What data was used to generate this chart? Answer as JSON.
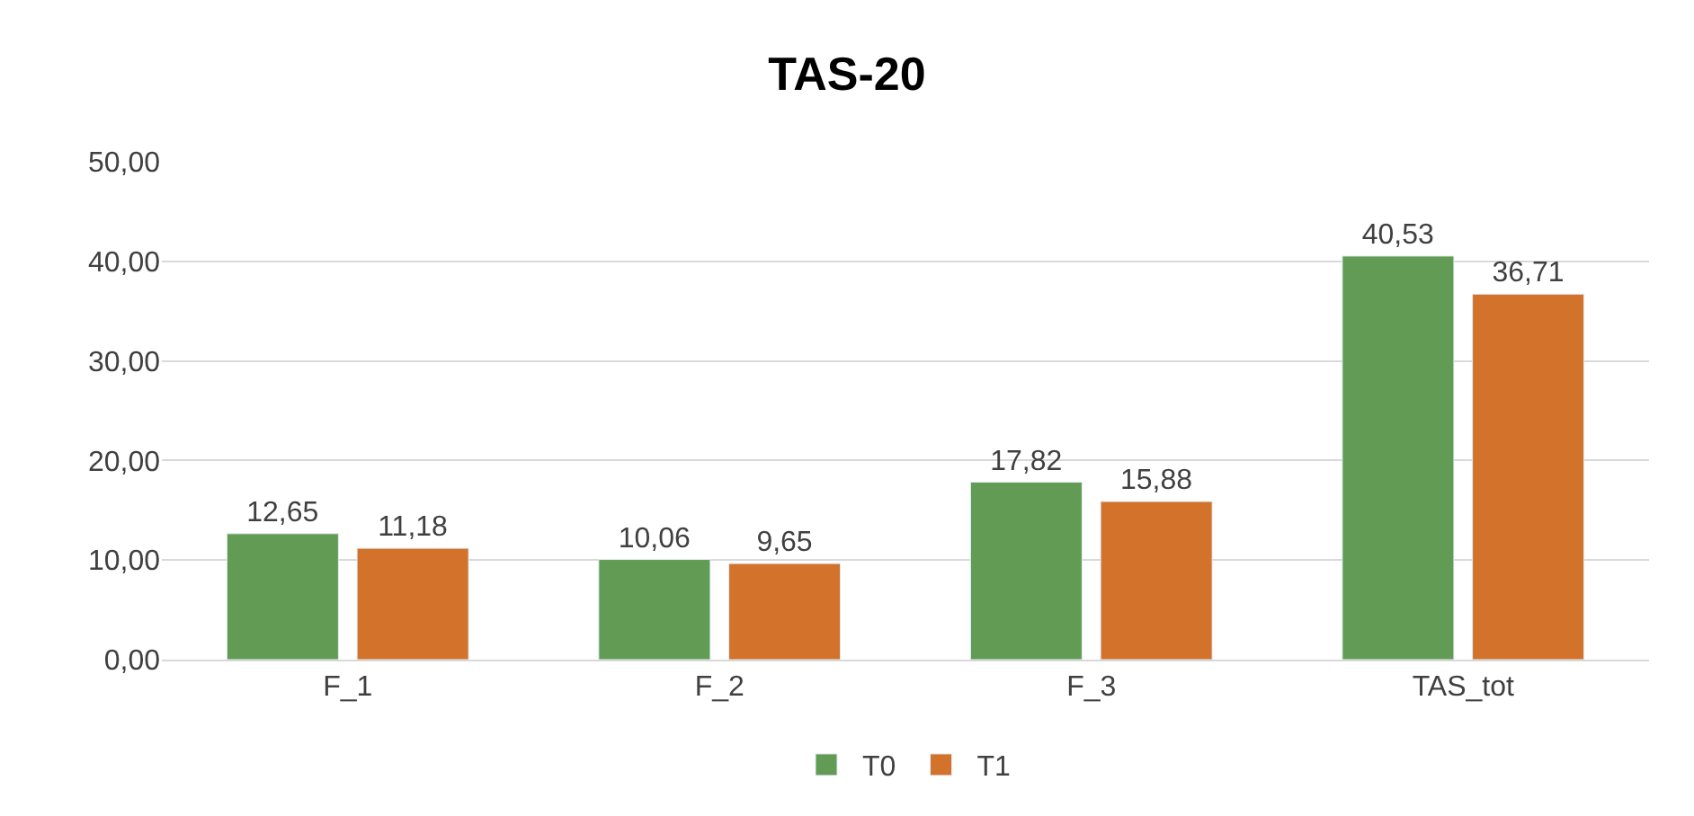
{
  "chart_data": {
    "type": "bar",
    "title": "TAS-20",
    "categories": [
      "F_1",
      "F_2",
      "F_3",
      "TAS_tot"
    ],
    "series": [
      {
        "name": "T0",
        "color": "#629b53",
        "values": [
          12.65,
          10.06,
          17.82,
          40.53
        ],
        "value_labels": [
          "12,65",
          "10,06",
          "17,82",
          "40,53"
        ]
      },
      {
        "name": "T1",
        "color": "#d2722b",
        "values": [
          11.18,
          9.65,
          15.88,
          36.71
        ],
        "value_labels": [
          "11,18",
          "9,65",
          "15,88",
          "36,71"
        ]
      }
    ],
    "ylim": [
      0,
      50
    ],
    "yticks": [
      {
        "value": 0,
        "label": "0,00"
      },
      {
        "value": 10,
        "label": "10,00"
      },
      {
        "value": 20,
        "label": "20,00"
      },
      {
        "value": 30,
        "label": "30,00"
      },
      {
        "value": 40,
        "label": "40,00"
      },
      {
        "value": 50,
        "label": "50,00"
      }
    ],
    "grid": "y",
    "legend": "bottom"
  }
}
